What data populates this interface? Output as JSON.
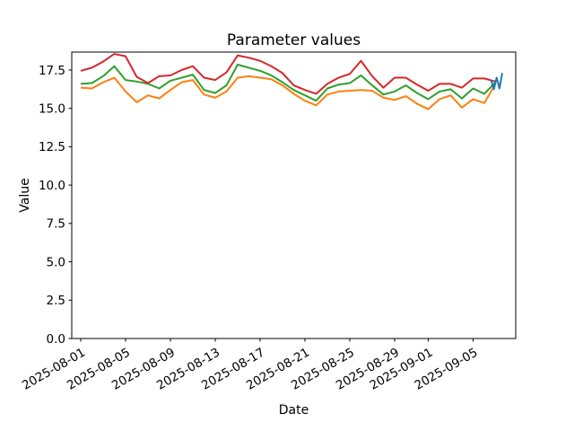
{
  "figure": {
    "title": "Parameter values",
    "xlabel": "Date",
    "ylabel": "Value"
  },
  "chart_data": {
    "type": "line",
    "title": "Parameter values",
    "xlabel": "Date",
    "ylabel": "Value",
    "grid": false,
    "legend": "none",
    "x_axis": {
      "start_date": "2025-08-01",
      "tick_labels": [
        "2025-08-01",
        "2025-08-05",
        "2025-08-09",
        "2025-08-13",
        "2025-08-17",
        "2025-08-21",
        "2025-08-25",
        "2025-08-29",
        "2025-09-01",
        "2025-09-05"
      ],
      "tick_day_offsets": [
        0,
        4,
        8,
        12,
        16,
        20,
        24,
        28,
        31,
        35
      ],
      "tick_label_rotation_deg": 30
    },
    "y_axis": {
      "tick_labels": [
        "0.0",
        "2.5",
        "5.0",
        "7.5",
        "10.0",
        "12.5",
        "15.0",
        "17.5"
      ],
      "tick_values": [
        0.0,
        2.5,
        5.0,
        7.5,
        10.0,
        12.5,
        15.0,
        17.5
      ],
      "range": [
        0,
        18.67
      ]
    },
    "series": [
      {
        "name": "orange-series",
        "color": "#ff7f0e",
        "x_days": [
          0,
          1,
          2,
          3,
          4,
          5,
          6,
          7,
          8,
          9,
          10,
          11,
          12,
          13,
          14,
          15,
          16,
          17,
          18,
          19,
          20,
          21,
          22,
          23,
          24,
          25,
          26,
          27,
          28,
          29,
          30,
          31,
          32,
          33,
          34,
          35,
          36,
          37
        ],
        "values": [
          16.35,
          16.3,
          16.7,
          17.0,
          16.1,
          15.4,
          15.85,
          15.65,
          16.2,
          16.7,
          16.85,
          15.9,
          15.7,
          16.1,
          17.0,
          17.1,
          17.0,
          16.9,
          16.5,
          15.95,
          15.5,
          15.2,
          15.9,
          16.1,
          16.15,
          16.2,
          16.15,
          15.7,
          15.55,
          15.8,
          15.3,
          14.95,
          15.6,
          15.85,
          15.05,
          15.6,
          15.35,
          16.6
        ]
      },
      {
        "name": "green-series",
        "color": "#2ca02c",
        "x_days": [
          0,
          1,
          2,
          3,
          4,
          5,
          6,
          7,
          8,
          9,
          10,
          11,
          12,
          13,
          14,
          15,
          16,
          17,
          18,
          19,
          20,
          21,
          22,
          23,
          24,
          25,
          26,
          27,
          28,
          29,
          30,
          31,
          32,
          33,
          34,
          35,
          36,
          37
        ],
        "values": [
          16.6,
          16.65,
          17.1,
          17.75,
          16.85,
          16.75,
          16.6,
          16.3,
          16.8,
          17.0,
          17.2,
          16.2,
          16.0,
          16.5,
          17.85,
          17.65,
          17.45,
          17.15,
          16.7,
          16.2,
          15.85,
          15.5,
          16.3,
          16.55,
          16.65,
          17.15,
          16.5,
          15.9,
          16.1,
          16.5,
          16.0,
          15.6,
          16.1,
          16.25,
          15.65,
          16.3,
          15.95,
          16.7
        ]
      },
      {
        "name": "red-series",
        "color": "#d62728",
        "x_days": [
          0,
          1,
          2,
          3,
          4,
          5,
          6,
          7,
          8,
          9,
          10,
          11,
          12,
          13,
          14,
          15,
          16,
          17,
          18,
          19,
          20,
          21,
          22,
          23,
          24,
          25,
          26,
          27,
          28,
          29,
          30,
          31,
          32,
          33,
          34,
          35,
          36,
          37
        ],
        "values": [
          17.45,
          17.65,
          18.05,
          18.55,
          18.4,
          17.05,
          16.65,
          17.1,
          17.15,
          17.5,
          17.75,
          17.0,
          16.85,
          17.35,
          18.45,
          18.3,
          18.1,
          17.75,
          17.3,
          16.5,
          16.2,
          15.95,
          16.6,
          17.0,
          17.25,
          18.1,
          17.1,
          16.35,
          17.0,
          17.0,
          16.55,
          16.15,
          16.6,
          16.6,
          16.35,
          16.95,
          16.95,
          16.75
        ]
      },
      {
        "name": "blue-series",
        "color": "#1f77b4",
        "x_days": [
          36.6,
          36.85,
          37.1,
          37.35,
          37.6
        ],
        "values": [
          16.85,
          16.25,
          17.0,
          16.3,
          17.3
        ]
      }
    ]
  }
}
